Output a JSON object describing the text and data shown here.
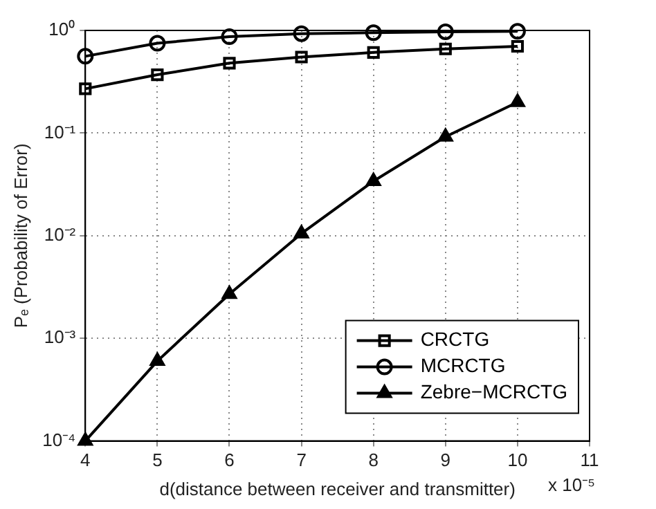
{
  "chart_data": {
    "type": "line",
    "xlabel": "d(distance between receiver and transmitter)",
    "ylabel": "Pₑ (Probability of Error)",
    "x": [
      4,
      5,
      6,
      7,
      8,
      9,
      10
    ],
    "series": [
      {
        "name": "CRCTG",
        "color": "#000000",
        "marker": "square",
        "values": [
          0.27,
          0.37,
          0.48,
          0.55,
          0.61,
          0.66,
          0.7
        ]
      },
      {
        "name": "MCRCTG",
        "color": "#000000",
        "marker": "circle",
        "values": [
          0.56,
          0.75,
          0.87,
          0.93,
          0.95,
          0.97,
          0.98
        ]
      },
      {
        "name": "Zebre−MCRCTG",
        "color": "#000000",
        "marker": "triangle",
        "values": [
          0.0001,
          0.0006,
          0.0027,
          0.0105,
          0.034,
          0.092,
          0.2
        ]
      }
    ],
    "log": "y",
    "xlim": [
      4,
      11
    ],
    "xticks": [
      4,
      5,
      6,
      7,
      8,
      9,
      10,
      11
    ],
    "ylim": [
      0.0001,
      1
    ],
    "yticks": [
      {
        "value": 0.0001,
        "label": "10⁻⁴"
      },
      {
        "value": 0.001,
        "label": "10⁻³"
      },
      {
        "value": 0.01,
        "label": "10⁻²"
      },
      {
        "value": 0.1,
        "label": "10⁻¹"
      },
      {
        "value": 1,
        "label": "10⁰"
      }
    ],
    "grid": true,
    "legend": "bottom right",
    "line_style": "solid",
    "annotations": [
      "x 10⁻⁵"
    ]
  }
}
